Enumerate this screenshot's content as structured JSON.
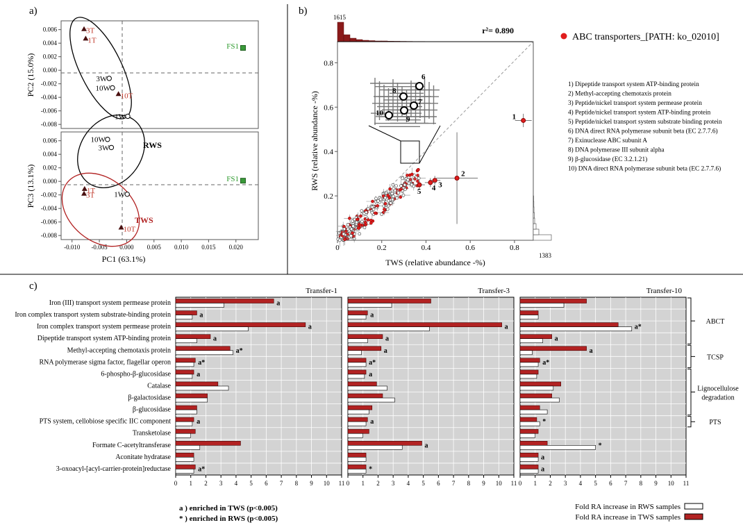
{
  "colors": {
    "tws": "#b22222",
    "rws": "#ffffff",
    "fs1": "#3a9a3a",
    "plot_bg": "#d3d3d3",
    "tws_text": "#c0392b",
    "fs1_text": "#2e9b2e"
  },
  "panel_a": {
    "label": "a)",
    "xlabel": "PC1 (63.1%)",
    "xticks": [
      "-0.010",
      "-0.005",
      "0.000",
      "0.005",
      "0.010",
      "0.015",
      "0.020"
    ],
    "top": {
      "ylabel": "PC2 (15.0%)",
      "yticks": [
        "0.006",
        "0.004",
        "0.002",
        "0.000",
        "-0.002",
        "-0.004",
        "-0.006",
        "-0.008"
      ],
      "points": [
        {
          "label": "3T",
          "x": -0.0078,
          "y": 0.0061,
          "type": "tws"
        },
        {
          "label": "1T",
          "x": -0.0075,
          "y": 0.0047,
          "type": "tws"
        },
        {
          "label": "3W",
          "x": -0.0032,
          "y": -0.0012,
          "type": "rws"
        },
        {
          "label": "10W",
          "x": -0.0026,
          "y": -0.0026,
          "type": "rws"
        },
        {
          "label": "10T",
          "x": -0.0015,
          "y": -0.0035,
          "type": "tws"
        },
        {
          "label": "1W",
          "x": 0.0002,
          "y": -0.0068,
          "type": "rws"
        },
        {
          "label": "FS1",
          "x": 0.0213,
          "y": 0.0033,
          "type": "fs1"
        }
      ]
    },
    "bottom": {
      "ylabel": "PC3 (13.1%)",
      "yticks": [
        "0.006",
        "0.004",
        "0.002",
        "0.000",
        "-0.002",
        "-0.004",
        "-0.006",
        "-0.008"
      ],
      "group_labels": [
        "RWS",
        "TWS"
      ],
      "points": [
        {
          "label": "10W",
          "x": -0.0035,
          "y": 0.0062,
          "type": "rws"
        },
        {
          "label": "3W",
          "x": -0.0028,
          "y": 0.005,
          "type": "rws"
        },
        {
          "label": "1T",
          "x": -0.0077,
          "y": -0.0011,
          "type": "tws"
        },
        {
          "label": "3T",
          "x": -0.0078,
          "y": -0.0018,
          "type": "tws"
        },
        {
          "label": "1W",
          "x": 0.0001,
          "y": -0.0019,
          "type": "rws"
        },
        {
          "label": "10T",
          "x": -0.001,
          "y": -0.0068,
          "type": "tws"
        },
        {
          "label": "FS1",
          "x": 0.0213,
          "y": 0.0001,
          "type": "fs1"
        }
      ]
    }
  },
  "panel_b": {
    "label": "b)",
    "xlabel": "TWS (relative abundance -%)",
    "ylabel": "RWS (relative abundance -%)",
    "xticks": [
      "0",
      "0.2",
      "0.4",
      "0.6",
      "0.8"
    ],
    "yticks": [
      "0.2",
      "0.4",
      "0.6",
      "0.8"
    ],
    "r2": "r²= 0.890",
    "hist_top_count": "1615",
    "hist_right_count": "1383",
    "legend": "ABC transporters_[PATH: ko_02010]",
    "numbered_points": [
      {
        "n": "1",
        "x": 0.84,
        "y": 0.54
      },
      {
        "n": "2",
        "x": 0.54,
        "y": 0.28
      },
      {
        "n": "3",
        "x": 0.44,
        "y": 0.27
      },
      {
        "n": "4",
        "x": 0.42,
        "y": 0.26
      },
      {
        "n": "5",
        "x": 0.37,
        "y": 0.25
      }
    ],
    "inset_labels": [
      "6",
      "7",
      "8",
      "9",
      "10"
    ],
    "descriptions": [
      "1) Dipeptide transport system ATP-binding protein",
      "2) Methyl-accepting chemotaxis protein",
      "3) Peptide/nickel transport system permease protein",
      "4) Peptide/nickel transport system ATP-binding protein",
      "5) Peptide/nickel transport system substrate binding protein",
      "6) DNA direct RNA polymerase subunit beta (EC 2.7.7.6)",
      "7) Exinuclease ABC subunit A",
      "8) DNA polymerase III subunit alpha",
      "9) β-glucosidase (EC 3.2.1.21)",
      "10) DNA direct RNA polymerase subunit beta (EC 2.7.7.6)"
    ]
  },
  "chart_data": {
    "type": "bar",
    "label": "c)",
    "categories": [
      "Iron (III) transport system permease protein",
      "Iron complex transport system substrate-binding protein",
      "Iron complex transport system permease protein",
      "Dipeptide transport system ATP-binding protein",
      "Methyl-accepting chemotaxis protein",
      "RNA polymerase sigma factor, flagellar operon",
      "6-phospho-β-glucosidase",
      "Catalase",
      "β-galactosidase",
      "β-glucosidase",
      "PTS system, cellobiose specific IIC component",
      "Transketolase",
      "Formate C-acetyltransferase",
      "Aconitate hydratase",
      "3-oxoacyl-[acyl-carrier-protein]reductase"
    ],
    "xticks": [
      "0",
      "1",
      "2",
      "3",
      "4",
      "5",
      "6",
      "7",
      "8",
      "9",
      "10",
      "11"
    ],
    "xlim": [
      0,
      11
    ],
    "panels": [
      {
        "title": "Transfer-1",
        "tws": [
          6.5,
          1.4,
          8.6,
          2.3,
          3.6,
          1.3,
          1.2,
          2.8,
          2.1,
          1.4,
          1.2,
          1.3,
          4.3,
          1.2,
          1.3
        ],
        "rws": [
          3.2,
          1.1,
          4.8,
          1.4,
          3.8,
          1.2,
          1.1,
          3.5,
          2.1,
          1.4,
          1.1,
          1.0,
          1.6,
          1.2,
          1.2
        ],
        "marks": [
          "a",
          "a",
          "a",
          "a",
          "a*",
          "a*",
          "a",
          "",
          "",
          "",
          "a",
          "",
          "",
          "",
          "a*"
        ]
      },
      {
        "title": "Transfer-3",
        "tws": [
          5.5,
          1.3,
          10.2,
          2.3,
          2.2,
          1.2,
          1.2,
          1.9,
          2.3,
          1.6,
          1.3,
          1.4,
          4.9,
          1.2,
          1.2
        ],
        "rws": [
          2.9,
          1.2,
          5.4,
          1.3,
          0.9,
          1.2,
          1.1,
          2.6,
          3.1,
          1.4,
          1.2,
          1.0,
          3.6,
          1.2,
          1.2
        ],
        "marks": [
          "",
          "a",
          "a",
          "a",
          "a",
          "a*",
          "a",
          "",
          "",
          "",
          "a",
          "",
          "a",
          "",
          "*"
        ]
      },
      {
        "title": "Transfer-10",
        "tws": [
          4.4,
          1.2,
          6.5,
          2.1,
          4.4,
          1.3,
          1.2,
          2.7,
          2.1,
          1.3,
          1.1,
          1.2,
          1.8,
          1.2,
          1.2
        ],
        "rws": [
          2.9,
          1.2,
          7.4,
          1.5,
          0.8,
          1.2,
          1.1,
          2.2,
          2.6,
          1.8,
          1.3,
          1.0,
          5.0,
          1.2,
          1.2
        ],
        "marks": [
          "",
          "",
          "a*",
          "a",
          "a",
          "a*",
          "",
          "",
          "",
          "",
          "*",
          "",
          "*",
          "a",
          "a"
        ]
      }
    ],
    "groups": [
      {
        "label": "ABCT",
        "from": 0,
        "to": 3
      },
      {
        "label": "TCSP",
        "from": 4,
        "to": 5
      },
      {
        "label": "Lignocellulose degradation",
        "from": 6,
        "to": 9
      },
      {
        "label": "PTS",
        "from": 10,
        "to": 10
      }
    ],
    "footnotes": [
      "a ) enriched in TWS (p<0.005)",
      "* ) enriched in RWS (p<0.005)"
    ],
    "legend": [
      "Fold RA increase in RWS samples",
      "Fold RA increase in TWS samples"
    ]
  }
}
